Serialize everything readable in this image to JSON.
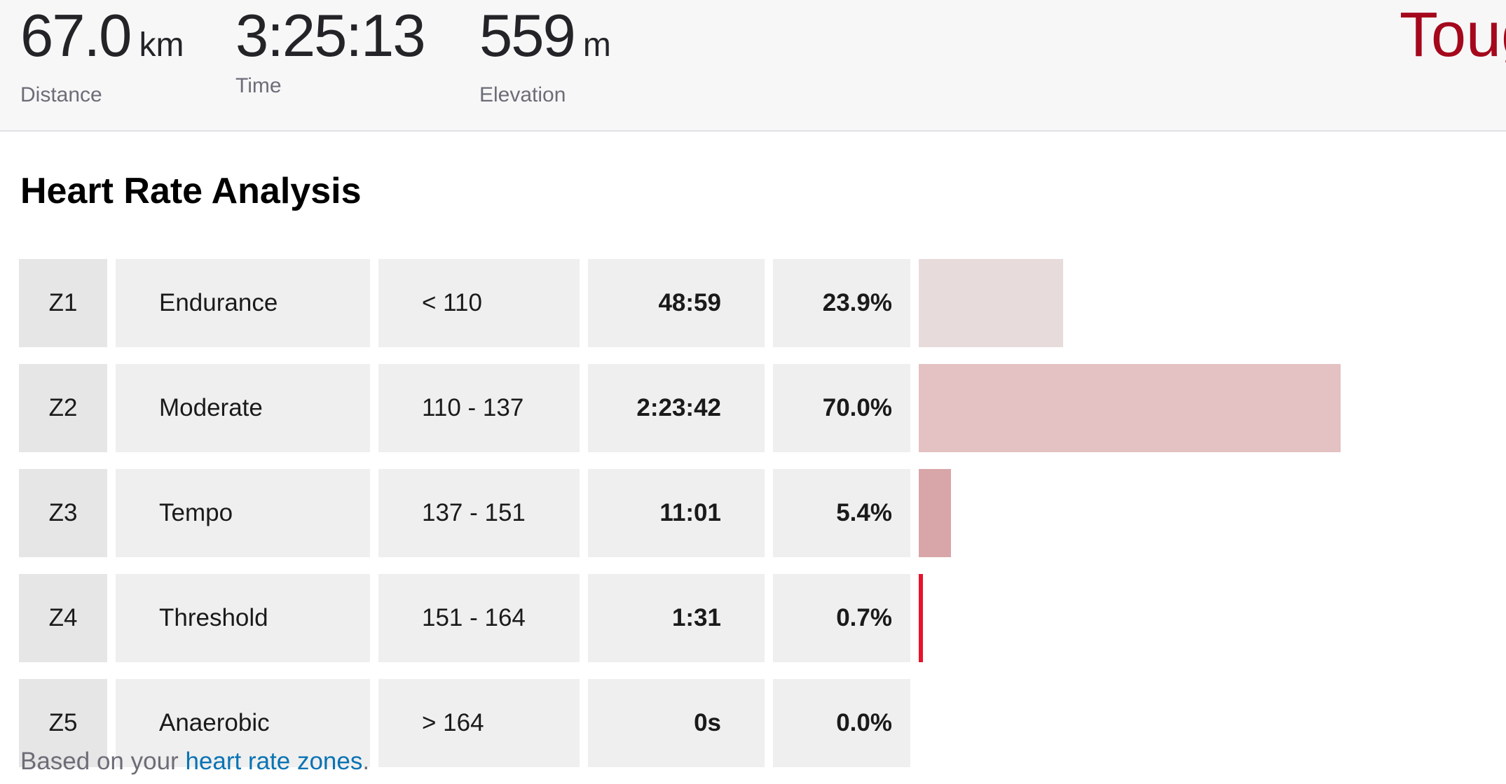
{
  "stats": {
    "distance": {
      "value": "67.0",
      "unit": "km",
      "label": "Distance"
    },
    "time": {
      "value": "3:25:13",
      "label": "Time"
    },
    "elevation": {
      "value": "559",
      "unit": "m",
      "label": "Elevation"
    },
    "effort_text": "Toug"
  },
  "section_title": "Heart Rate Analysis",
  "zones": [
    {
      "zone": "Z1",
      "name": "Endurance",
      "range": "< 110",
      "time": "48:59",
      "percent": "23.9%",
      "fraction": 0.239,
      "bar_color": "#e7dbdc"
    },
    {
      "zone": "Z2",
      "name": "Moderate",
      "range": "110 - 137",
      "time": "2:23:42",
      "percent": "70.0%",
      "fraction": 0.7,
      "bar_color": "#e4c1c2"
    },
    {
      "zone": "Z3",
      "name": "Tempo",
      "range": "137 - 151",
      "time": "11:01",
      "percent": "5.4%",
      "fraction": 0.054,
      "bar_color": "#d8a6a8"
    },
    {
      "zone": "Z4",
      "name": "Threshold",
      "range": "151 - 164",
      "time": "1:31",
      "percent": "0.7%",
      "fraction": 0.007,
      "bar_color": "#e8132b"
    },
    {
      "zone": "Z5",
      "name": "Anaerobic",
      "range": "> 164",
      "time": "0s",
      "percent": "0.0%",
      "fraction": 0.0,
      "bar_color": "#e8132b"
    }
  ],
  "footnote": {
    "prefix": "Based on your ",
    "link": "heart rate zones",
    "suffix": "."
  },
  "colors": {
    "accent": "#a5081c",
    "link": "#0a73b3",
    "muted_text": "#6d6d78"
  }
}
